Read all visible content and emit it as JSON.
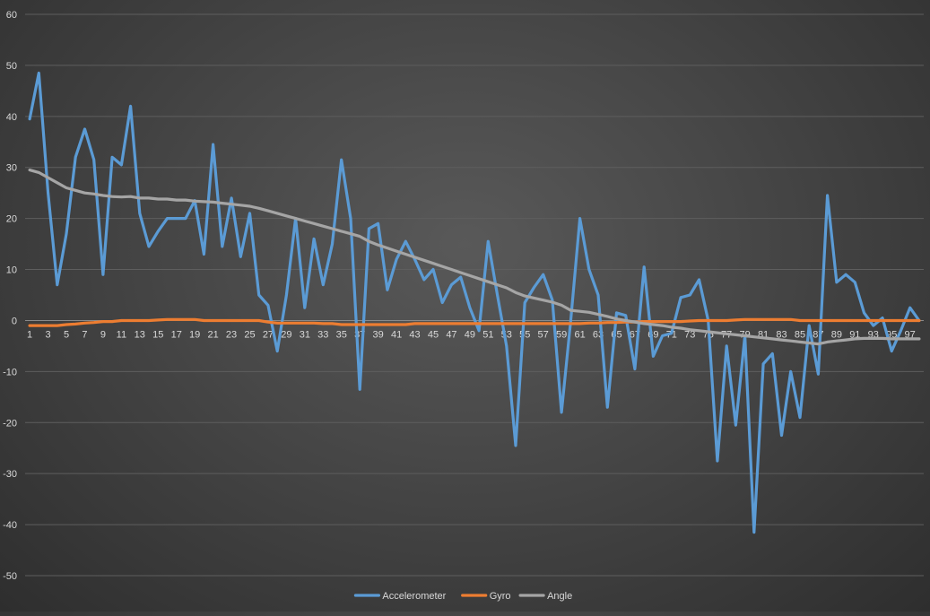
{
  "chart_data": {
    "type": "line",
    "title": "",
    "xlabel": "",
    "ylabel": "",
    "ylim": [
      -50,
      60
    ],
    "y_ticks": [
      60,
      50,
      40,
      30,
      20,
      10,
      0,
      -10,
      -20,
      -30,
      -40,
      -50
    ],
    "x": [
      1,
      2,
      3,
      4,
      5,
      6,
      7,
      8,
      9,
      10,
      11,
      12,
      13,
      14,
      15,
      16,
      17,
      18,
      19,
      20,
      21,
      22,
      23,
      24,
      25,
      26,
      27,
      28,
      29,
      30,
      31,
      32,
      33,
      34,
      35,
      36,
      37,
      38,
      39,
      40,
      41,
      42,
      43,
      44,
      45,
      46,
      47,
      48,
      49,
      50,
      51,
      52,
      53,
      54,
      55,
      56,
      57,
      58,
      59,
      60,
      61,
      62,
      63,
      64,
      65,
      66,
      67,
      68,
      69,
      70,
      71,
      72,
      73,
      74,
      75,
      76,
      77,
      78,
      79,
      80,
      81,
      82,
      83,
      84,
      85,
      86,
      87,
      88,
      89,
      90,
      91,
      92,
      93,
      94,
      95,
      96,
      97,
      98
    ],
    "x_tick_labels": [
      "1",
      "3",
      "5",
      "7",
      "9",
      "11",
      "13",
      "15",
      "17",
      "19",
      "21",
      "23",
      "25",
      "27",
      "29",
      "31",
      "33",
      "35",
      "37",
      "39",
      "41",
      "43",
      "45",
      "47",
      "49",
      "51",
      "53",
      "55",
      "57",
      "59",
      "61",
      "63",
      "65",
      "67",
      "69",
      "71",
      "73",
      "75",
      "77",
      "79",
      "81",
      "83",
      "85",
      "87",
      "89",
      "91",
      "93",
      "95",
      "97"
    ],
    "grid": true,
    "legend_position": "bottom",
    "series": [
      {
        "name": "Accelerometer",
        "color": "#5b9bd5",
        "values": [
          39.5,
          48.5,
          25,
          7,
          17,
          32,
          37.5,
          31.5,
          9,
          32,
          30.5,
          42,
          21,
          14.5,
          17.5,
          20,
          20,
          20,
          23.5,
          13,
          34.5,
          14.5,
          24,
          12.5,
          21,
          5,
          3,
          -6,
          5,
          20,
          2.5,
          16,
          7,
          15,
          31.5,
          20,
          -13.5,
          18,
          19,
          6,
          12,
          15.5,
          12,
          8,
          10,
          3.5,
          7,
          8.5,
          2.5,
          -2,
          15.5,
          5,
          -5,
          -24.5,
          3.5,
          6.5,
          9,
          4,
          -18,
          0,
          20,
          10,
          5,
          -17,
          1.5,
          1,
          -9.5,
          10.5,
          -7,
          -3,
          -2.5,
          4.5,
          5,
          8,
          0,
          -27.5,
          -5,
          -20.5,
          -3,
          -41.5,
          -8.5,
          -6.5,
          -22.5,
          -10,
          -19,
          -1,
          -10.5,
          24.5,
          7.5,
          9,
          7.5,
          1.5,
          -1,
          0.5,
          -6,
          -2,
          2.5,
          0
        ]
      },
      {
        "name": "Gyro",
        "color": "#ed7d31",
        "values": [
          -1,
          -1,
          -1,
          -1,
          -0.8,
          -0.7,
          -0.5,
          -0.4,
          -0.2,
          -0.2,
          0,
          0,
          0,
          0,
          0.1,
          0.2,
          0.2,
          0.2,
          0.2,
          0,
          0,
          0,
          0,
          0,
          0,
          0,
          -0.3,
          -0.5,
          -0.5,
          -0.5,
          -0.5,
          -0.5,
          -0.6,
          -0.6,
          -0.8,
          -0.8,
          -0.8,
          -0.8,
          -0.8,
          -0.8,
          -0.8,
          -0.8,
          -0.6,
          -0.6,
          -0.6,
          -0.6,
          -0.6,
          -0.6,
          -0.6,
          -0.6,
          -0.6,
          -0.6,
          -0.6,
          -0.6,
          -0.6,
          -0.6,
          -0.6,
          -0.6,
          -0.6,
          -0.6,
          -0.6,
          -0.5,
          -0.5,
          -0.4,
          -0.4,
          -0.3,
          -0.3,
          -0.2,
          -0.2,
          -0.2,
          -0.2,
          -0.2,
          -0.1,
          0,
          0,
          0,
          0,
          0.1,
          0.2,
          0.2,
          0.2,
          0.2,
          0.2,
          0.2,
          0,
          0,
          0,
          0,
          0,
          0,
          0,
          0,
          0,
          0,
          0,
          0,
          0,
          0
        ]
      },
      {
        "name": "Angle",
        "color": "#a5a5a5",
        "values": [
          29.5,
          29,
          28,
          27,
          26,
          25.5,
          25,
          24.8,
          24.5,
          24.3,
          24.2,
          24.3,
          24,
          24,
          23.8,
          23.8,
          23.6,
          23.6,
          23.4,
          23.3,
          23.2,
          23,
          22.8,
          22.6,
          22.4,
          22,
          21.5,
          21,
          20.5,
          20,
          19.5,
          19,
          18.5,
          18,
          17.5,
          17,
          16.5,
          15.5,
          14.8,
          14.2,
          13.6,
          13,
          12.4,
          11.8,
          11.2,
          10.6,
          10,
          9.4,
          8.8,
          8.2,
          7.6,
          7,
          6.4,
          5.5,
          4.8,
          4.4,
          4,
          3.6,
          3,
          2,
          1.8,
          1.6,
          1.2,
          0.8,
          0.3,
          0,
          -0.3,
          -0.6,
          -0.8,
          -1,
          -1.3,
          -1.5,
          -1.8,
          -2,
          -2.2,
          -2.4,
          -2.6,
          -2.8,
          -3,
          -3.2,
          -3.4,
          -3.6,
          -3.8,
          -4,
          -4.2,
          -4.4,
          -4.6,
          -4.2,
          -4,
          -3.8,
          -3.6,
          -3.5,
          -3.5,
          -3.5,
          -3.6,
          -3.6,
          -3.6,
          -3.6
        ]
      }
    ]
  }
}
